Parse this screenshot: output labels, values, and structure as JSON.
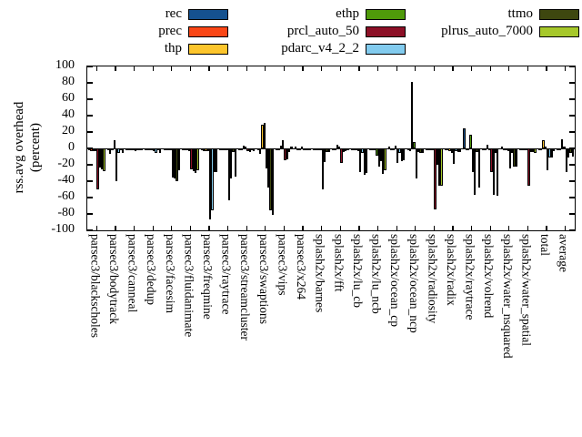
{
  "figure": {
    "ylabel_line1": "rss.avg overhead",
    "ylabel_line2": "(percent)"
  },
  "axes": {
    "ytick_labels": [
      "100",
      "80",
      "60",
      "40",
      "20",
      "0",
      "-20",
      "-40",
      "-60",
      "-80",
      "-100"
    ],
    "ytick_values": [
      100,
      80,
      60,
      40,
      20,
      0,
      -20,
      -40,
      -60,
      -80,
      -100
    ]
  },
  "legend_columns": [
    [
      "rec",
      "prec",
      "thp"
    ],
    [
      "ethp",
      "prcl_auto_50",
      "pdarc_v4_2_2"
    ],
    [
      "ttmo",
      "plrus_auto_7000"
    ]
  ],
  "chart_data": {
    "type": "bar",
    "title": "",
    "xlabel": "",
    "ylabel": "rss.avg overhead (percent)",
    "ylim": [
      -100,
      100
    ],
    "ytick_step": 20,
    "grid": false,
    "legend_position": "top",
    "categories": [
      "parsec3/blackscholes",
      "parsec3/bodytrack",
      "parsec3/canneal",
      "parsec3/dedup",
      "parsec3/facesim",
      "parsec3/fluidanimate",
      "parsec3/freqmine",
      "parsec3/raytrace",
      "parsec3/streamcluster",
      "parsec3/swaptions",
      "parsec3/vips",
      "parsec3/x264",
      "splash2x/barnes",
      "splash2x/fft",
      "splash2x/lu_cb",
      "splash2x/lu_ncb",
      "splash2x/ocean_cp",
      "splash2x/ocean_ncp",
      "splash2x/radiosity",
      "splash2x/radix",
      "splash2x/raytrace",
      "splash2x/volrend",
      "splash2x/water_nsquared",
      "splash2x/water_spatial",
      "total",
      "average"
    ],
    "series": [
      {
        "name": "rec",
        "color": "#15518f",
        "values": [
          -2,
          -2,
          -1,
          -1,
          -2,
          -2,
          -2,
          -2,
          -1,
          -2,
          -1,
          2,
          -2,
          -2,
          -2,
          -2,
          2,
          -2,
          -2,
          -2,
          24,
          -2,
          2,
          -2,
          -2,
          -2
        ]
      },
      {
        "name": "prec",
        "color": "#fa4616",
        "values": [
          -3,
          -7,
          -2,
          -2,
          -2,
          -2,
          -3,
          -2,
          -2,
          -7,
          -2,
          -1,
          -2,
          -2,
          -2,
          -2,
          -2,
          -3,
          -2,
          -2,
          -2,
          -2,
          -2,
          -2,
          -2,
          -2
        ]
      },
      {
        "name": "thp",
        "color": "#fcc52c",
        "values": [
          -3,
          -2,
          -2,
          -2,
          -2,
          -2,
          -3,
          -2,
          3,
          29,
          3,
          -1,
          -2,
          4,
          -2,
          -2,
          -2,
          81,
          -2,
          -3,
          -2,
          4,
          -2,
          -2,
          10,
          11
        ]
      },
      {
        "name": "ethp",
        "color": "#4f9a0a",
        "values": [
          -3,
          10,
          -2,
          -2,
          -2,
          -3,
          -3,
          -2,
          2,
          31,
          10,
          2,
          -2,
          2,
          -3,
          -9,
          3,
          8,
          -2,
          -5,
          17,
          -2,
          -3,
          -2,
          2,
          2
        ]
      },
      {
        "name": "prcl_auto_50",
        "color": "#8c1026",
        "values": [
          -50,
          -40,
          -3,
          -3,
          -35,
          -26,
          -87,
          -63,
          -3,
          -24,
          -14,
          -2,
          -50,
          -18,
          -29,
          -22,
          -18,
          -37,
          -74,
          -19,
          -29,
          -29,
          -24,
          -46,
          -27,
          -29
        ]
      },
      {
        "name": "pdarc_v4_2_2",
        "color": "#82cbee",
        "values": [
          -23,
          -5,
          -2,
          -5,
          -37,
          -28,
          -76,
          -37,
          -4,
          -48,
          -13,
          -2,
          -17,
          -4,
          -6,
          -16,
          -5,
          -4,
          -20,
          -3,
          -57,
          -57,
          -5,
          -4,
          -11,
          -11
        ]
      },
      {
        "name": "ttmo",
        "color": "#3e470f",
        "values": [
          -25,
          -2,
          -2,
          -2,
          -40,
          -30,
          -29,
          -4,
          -2,
          -75,
          -4,
          -1,
          -4,
          -3,
          -32,
          -31,
          -15,
          -5,
          -46,
          -4,
          -4,
          -5,
          -22,
          -4,
          -11,
          -5
        ]
      },
      {
        "name": "plrus_auto_7000",
        "color": "#a6c82a",
        "values": [
          -28,
          -6,
          -2,
          -5,
          -27,
          -27,
          -29,
          -34,
          -3,
          -81,
          2,
          -1,
          -4,
          -2,
          -30,
          -27,
          -14,
          -6,
          -46,
          -4,
          -48,
          -58,
          -22,
          -5,
          -3,
          -10
        ]
      }
    ]
  }
}
